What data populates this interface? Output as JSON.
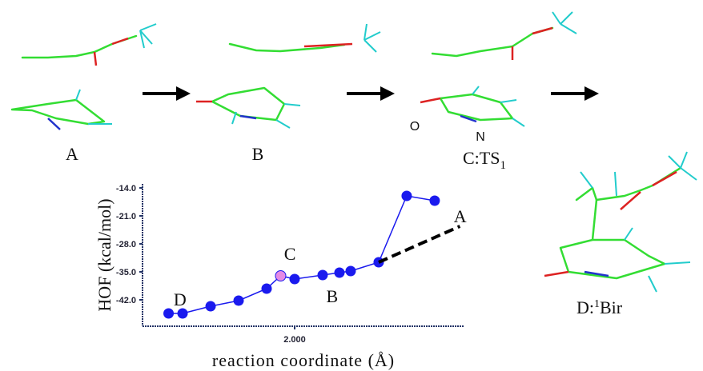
{
  "structures": {
    "a": "A",
    "b": "B",
    "c_main": "C:TS",
    "c_sub": "1",
    "d_main": "D:",
    "d_sup": "1",
    "d_tail": "Bir",
    "o_atom": "O",
    "n_atom": "N"
  },
  "chart_data": {
    "type": "line",
    "y_label": "HOF (kcal/mol)",
    "x_label": "reaction coordinate (Å)",
    "xlim": [
      1.457,
      2.606
    ],
    "ylim": [
      -48.6,
      -13.0
    ],
    "xticks": [
      {
        "value": 2.0,
        "label": "2.000"
      }
    ],
    "yticks": [
      {
        "value": -14.0,
        "label": "-14.0"
      },
      {
        "value": -21.0,
        "label": "-21.0"
      },
      {
        "value": -28.0,
        "label": "-28.0"
      },
      {
        "value": -35.0,
        "label": "-35.0"
      },
      {
        "value": -42.0,
        "label": "-42.0"
      }
    ],
    "series": [
      {
        "color": "#1a1aee",
        "marker_colors": [
          "#1a1aee",
          "#1a1aee",
          "#1a1aee",
          "#1a1aee",
          "#1a1aee",
          "#e58ae5",
          "#1a1aee",
          "#1a1aee",
          "#1a1aee",
          "#1a1aee",
          "#1a1aee",
          "#1a1aee",
          "#1a1aee"
        ],
        "x": [
          1.55,
          1.6,
          1.7,
          1.8,
          1.9,
          1.95,
          2.0,
          2.1,
          2.16,
          2.2,
          2.3,
          2.4,
          2.5
        ],
        "values": [
          -45.4,
          -45.4,
          -43.6,
          -42.2,
          -39.2,
          -36.0,
          -36.8,
          -35.8,
          -35.2,
          -34.8,
          -32.6,
          -16.0,
          -17.2
        ]
      },
      {
        "color": "#000000",
        "dashed": true,
        "x": [
          2.3,
          2.59
        ],
        "values": [
          -32.6,
          -23.6
        ]
      }
    ],
    "annotations": [
      {
        "text": "D",
        "x": 1.591,
        "y": -43.4
      },
      {
        "text": "C",
        "x": 1.983,
        "y": -32.0
      },
      {
        "text": "B",
        "x": 2.134,
        "y": -42.6
      },
      {
        "text": "A",
        "x": 2.591,
        "y": -22.6
      }
    ]
  }
}
